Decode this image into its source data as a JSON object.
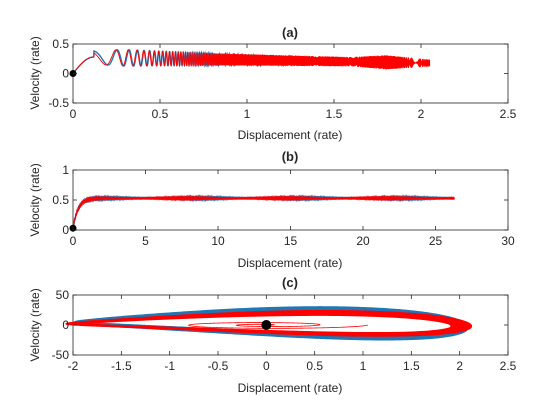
{
  "colors": {
    "blue": "#1f77b4",
    "red": "#ff0000",
    "marker": "#000000",
    "axes": "#262626"
  },
  "chart_data": [
    {
      "id": "a",
      "type": "line",
      "title": "(a)",
      "xlabel": "Displacement (rate)",
      "ylabel": "Velocity (rate)",
      "xlim": [
        0,
        2.5
      ],
      "ylim": [
        -0.5,
        0.5
      ],
      "xticks": [
        0,
        0.5,
        1,
        1.5,
        2,
        2.5
      ],
      "xtick_labels": [
        "0",
        "0.5",
        "1",
        "1.5",
        "2",
        "2.5"
      ],
      "yticks": [
        -0.5,
        0,
        0.5
      ],
      "ytick_labels": [
        "-0.5",
        "0",
        "0.5"
      ],
      "grid": false,
      "series": [
        {
          "color": "blue",
          "x_end": 1.62,
          "center": 0.28,
          "amplitude_points": [
            [
              0,
              0.1
            ],
            [
              0.3,
              0.14
            ],
            [
              0.8,
              0.1
            ],
            [
              1.6,
              0.05
            ]
          ]
        },
        {
          "color": "red",
          "x_end": 2.05,
          "center": 0.28,
          "amplitude_points": [
            [
              0,
              0.1
            ],
            [
              0.3,
              0.14
            ],
            [
              0.8,
              0.1
            ],
            [
              1.6,
              0.08
            ],
            [
              1.8,
              0.12
            ],
            [
              2.05,
              0.06
            ]
          ]
        }
      ],
      "start_marker": [
        0,
        0
      ]
    },
    {
      "id": "b",
      "type": "line",
      "title": "(b)",
      "xlabel": "Displacement (rate)",
      "ylabel": "Velocity (rate)",
      "xlim": [
        0,
        30
      ],
      "ylim": [
        0,
        1
      ],
      "xticks": [
        0,
        5,
        10,
        15,
        20,
        25,
        30
      ],
      "xtick_labels": [
        "0",
        "5",
        "10",
        "15",
        "20",
        "25",
        "30"
      ],
      "yticks": [
        0,
        0.5,
        1
      ],
      "ytick_labels": [
        "0",
        "0.5",
        "1"
      ],
      "grid": false,
      "series": [
        {
          "color": "blue",
          "x_end": 26.3,
          "plateau": 0.53
        },
        {
          "color": "red",
          "x_end": 26.3,
          "plateau": 0.53
        }
      ],
      "start_marker": [
        0,
        0.03
      ]
    },
    {
      "id": "c",
      "type": "line",
      "title": "(c)",
      "xlabel": "Displacement (rate)",
      "ylabel": "Velocity (rate)",
      "xlim": [
        -2,
        2.5
      ],
      "ylim": [
        -50,
        50
      ],
      "xticks": [
        -2,
        -1.5,
        -1,
        -0.5,
        0,
        0.5,
        1,
        1.5,
        2,
        2.5
      ],
      "xtick_labels": [
        "-2",
        "-1.5",
        "-1",
        "-0.5",
        "0",
        "0.5",
        "1",
        "1.5",
        "2",
        "2.5"
      ],
      "yticks": [
        -50,
        0,
        50
      ],
      "ytick_labels": [
        "-50",
        "0",
        "50"
      ],
      "grid": false,
      "series": [
        {
          "color": "blue",
          "x_range": [
            -2.0,
            2.1
          ],
          "v_max": 37
        },
        {
          "color": "red",
          "x_range": [
            -2.05,
            2.1
          ],
          "v_max": 30
        }
      ],
      "start_marker": [
        0,
        0
      ]
    }
  ]
}
